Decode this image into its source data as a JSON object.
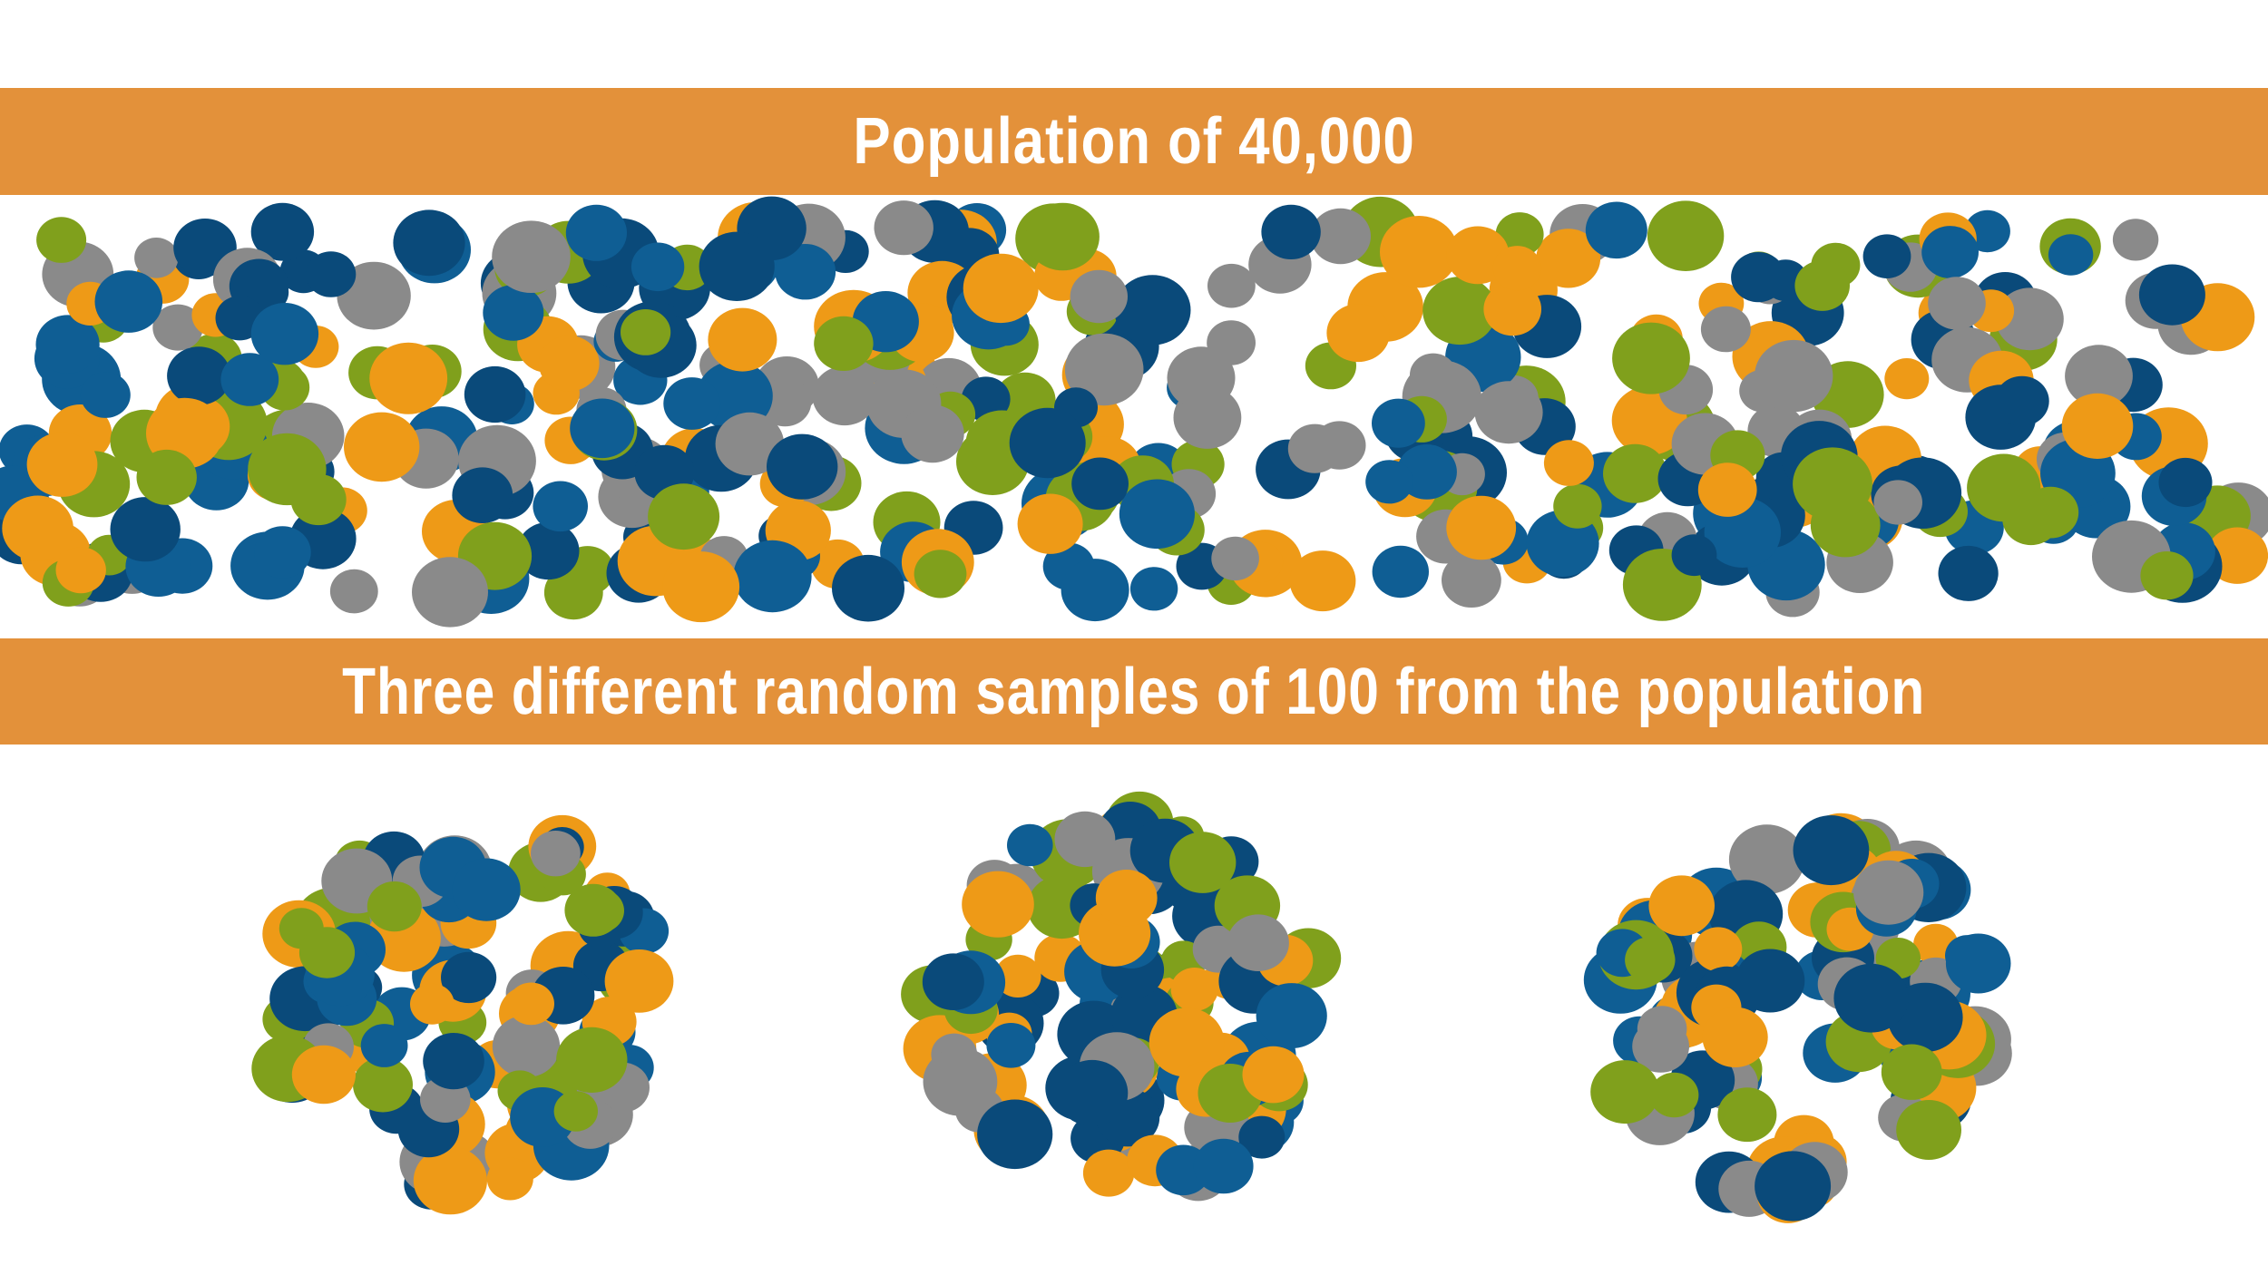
{
  "population_banner": {
    "title": "Population of 40,000"
  },
  "samples_banner": {
    "title": "Three different random samples of 100 from the population"
  },
  "colors": {
    "banner": "#E3913A",
    "dot_palette": [
      "#0A4A7A",
      "#0F5E94",
      "#8A8A8A",
      "#80A01C",
      "#EE9A17"
    ]
  },
  "population": {
    "dot_count": 400
  },
  "samples": [
    {
      "name": "sample-1",
      "dot_count": 100
    },
    {
      "name": "sample-2",
      "dot_count": 100
    },
    {
      "name": "sample-3",
      "dot_count": 100
    }
  ]
}
